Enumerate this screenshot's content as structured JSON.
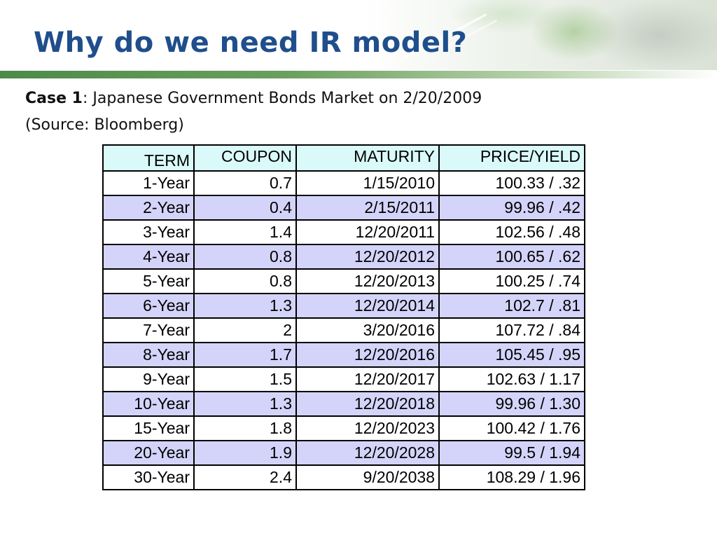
{
  "slide": {
    "title": "Why do we need IR model?",
    "case_label": "Case 1",
    "case_description": ": Japanese Government Bonds Market on 2/20/2009",
    "source": "(Source: Bloomberg)"
  },
  "colors": {
    "title": "#1f4e8c",
    "rule": "#4d8a4a",
    "header_fill": "#dafafa",
    "alt_row_fill": "#d4d4fa"
  },
  "table": {
    "headers": {
      "term": "TERM",
      "coupon": "COUPON",
      "maturity": "MATURITY",
      "price_yield": "PRICE/YIELD"
    },
    "rows": [
      {
        "term": "1-Year",
        "coupon": "0.7",
        "maturity": "1/15/2010",
        "price_yield": "100.33 / .32"
      },
      {
        "term": "2-Year",
        "coupon": "0.4",
        "maturity": "2/15/2011",
        "price_yield": "99.96 / .42"
      },
      {
        "term": "3-Year",
        "coupon": "1.4",
        "maturity": "12/20/2011",
        "price_yield": "102.56 / .48"
      },
      {
        "term": "4-Year",
        "coupon": "0.8",
        "maturity": "12/20/2012",
        "price_yield": "100.65 / .62"
      },
      {
        "term": "5-Year",
        "coupon": "0.8",
        "maturity": "12/20/2013",
        "price_yield": "100.25 / .74"
      },
      {
        "term": "6-Year",
        "coupon": "1.3",
        "maturity": "12/20/2014",
        "price_yield": "102.7 / .81"
      },
      {
        "term": "7-Year",
        "coupon": "2",
        "maturity": "3/20/2016",
        "price_yield": "107.72 / .84"
      },
      {
        "term": "8-Year",
        "coupon": "1.7",
        "maturity": "12/20/2016",
        "price_yield": "105.45 / .95"
      },
      {
        "term": "9-Year",
        "coupon": "1.5",
        "maturity": "12/20/2017",
        "price_yield": "102.63 / 1.17"
      },
      {
        "term": "10-Year",
        "coupon": "1.3",
        "maturity": "12/20/2018",
        "price_yield": "99.96 / 1.30"
      },
      {
        "term": "15-Year",
        "coupon": "1.8",
        "maturity": "12/20/2023",
        "price_yield": "100.42 / 1.76"
      },
      {
        "term": "20-Year",
        "coupon": "1.9",
        "maturity": "12/20/2028",
        "price_yield": "99.5 / 1.94"
      },
      {
        "term": "30-Year",
        "coupon": "2.4",
        "maturity": "9/20/2038",
        "price_yield": "108.29 / 1.96"
      }
    ]
  }
}
